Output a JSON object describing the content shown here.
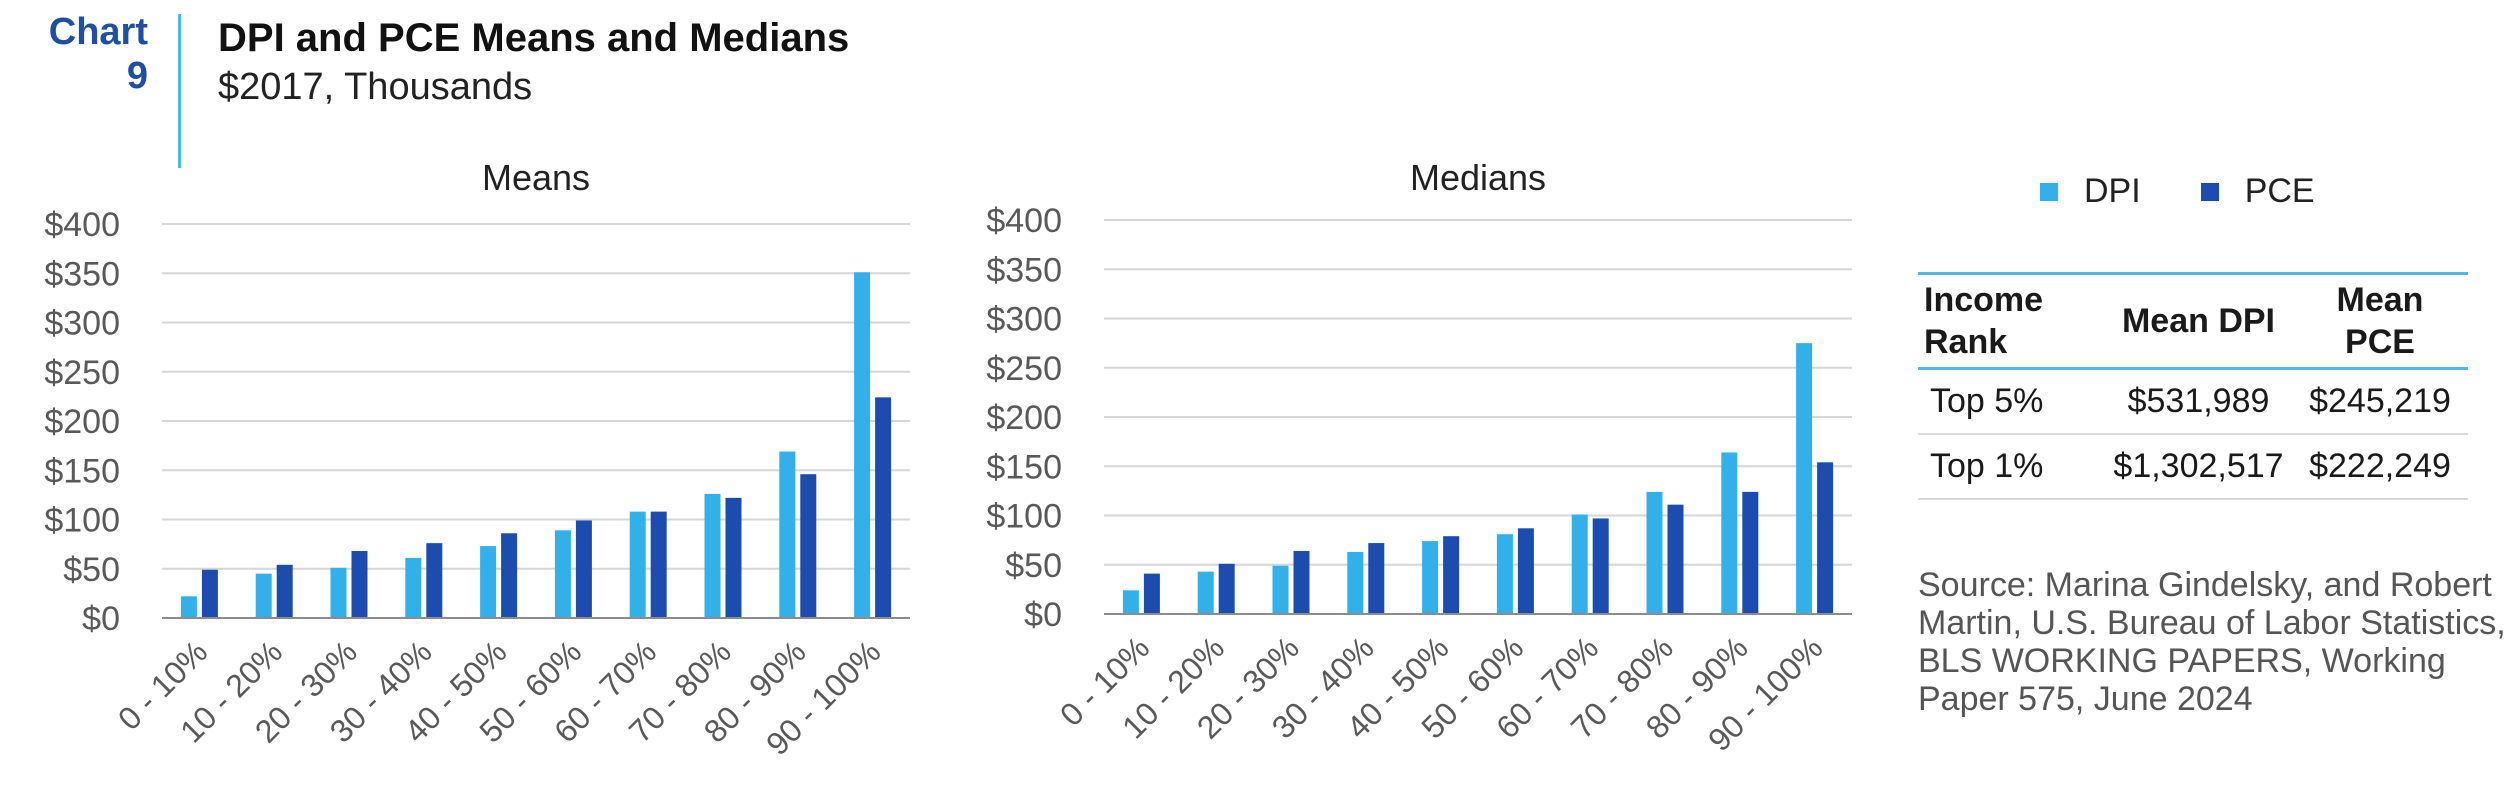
{
  "header": {
    "chart_label": "Chart",
    "chart_number": "9",
    "title": "DPI and PCE Means and Medians",
    "subtitle": "$2017, Thousands"
  },
  "legend": {
    "dpi": "DPI",
    "pce": "PCE"
  },
  "colors": {
    "dpi": "#33b0ea",
    "pce": "#1c4cad",
    "accent": "#4fb8e8",
    "label_blue": "#1e4fa3"
  },
  "chart_data": [
    {
      "type": "bar",
      "title": "Means",
      "categories": [
        "0 - 10%",
        "10 - 20%",
        "20 - 30%",
        "30 - 40%",
        "40 - 50%",
        "50 - 60%",
        "60 - 70%",
        "70 - 80%",
        "80 - 90%",
        "90 - 100%"
      ],
      "series": [
        {
          "name": "DPI",
          "values": [
            22,
            45,
            51,
            61,
            73,
            89,
            108,
            126,
            169,
            351
          ]
        },
        {
          "name": "PCE",
          "values": [
            49,
            54,
            68,
            76,
            86,
            99,
            108,
            122,
            146,
            224
          ]
        }
      ],
      "yticks": [
        "$0",
        "$50",
        "$100",
        "$150",
        "$200",
        "$250",
        "$300",
        "$350",
        "$400"
      ],
      "ylim": [
        0,
        400
      ],
      "grid": true
    },
    {
      "type": "bar",
      "title": "Medians",
      "categories": [
        "0 - 10%",
        "10 - 20%",
        "20 - 30%",
        "30 - 40%",
        "40 - 50%",
        "50 - 60%",
        "60 - 70%",
        "70 - 80%",
        "80 - 90%",
        "90 - 100%"
      ],
      "series": [
        {
          "name": "DPI",
          "values": [
            24,
            43,
            49,
            63,
            74,
            81,
            101,
            124,
            164,
            275
          ]
        },
        {
          "name": "PCE",
          "values": [
            41,
            51,
            64,
            72,
            79,
            87,
            97,
            111,
            124,
            154
          ]
        }
      ],
      "yticks": [
        "$0",
        "$50",
        "$100",
        "$150",
        "$200",
        "$250",
        "$300",
        "$350",
        "$400"
      ],
      "ylim": [
        0,
        400
      ],
      "grid": true
    }
  ],
  "table": {
    "headers": [
      "Income Rank",
      "Mean DPI",
      "Mean PCE"
    ],
    "rows": [
      [
        "Top 5%",
        "$531,989",
        "$245,219"
      ],
      [
        "Top 1%",
        "$1,302,517",
        "$222,249"
      ]
    ]
  },
  "source": "Source: Marina Gindelsky, and Robert Martin, U.S. Bureau of Labor Statistics, BLS WORKING PAPERS, Working Paper 575, June 2024"
}
